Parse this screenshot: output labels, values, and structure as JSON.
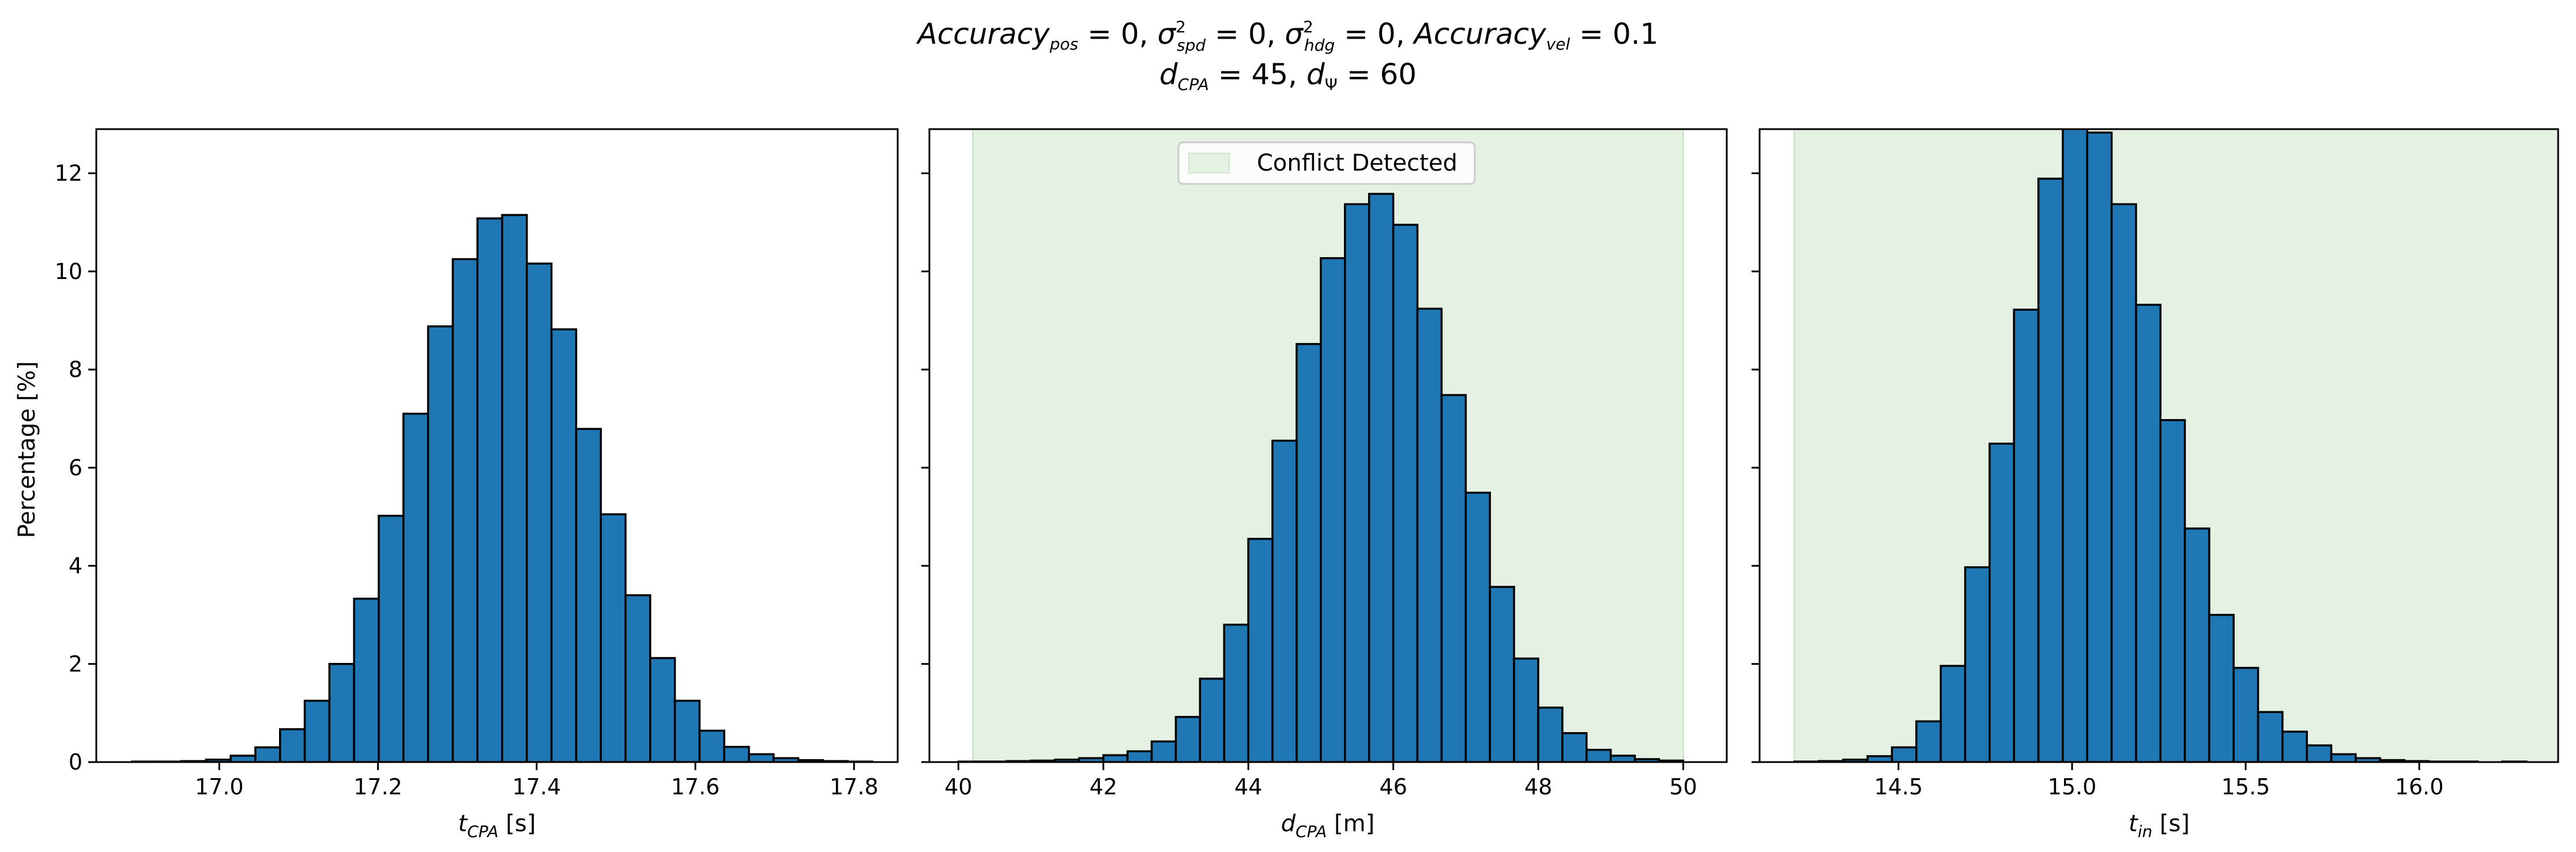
{
  "chart_data": {
    "type": "bar",
    "title": {
      "line1": "Accuracy_pos = 0, σ²_spd = 0, σ²_hdg = 0, Accuracy_vel = 0.1",
      "line2": "d_CPA = 45, d_Ψ = 60"
    },
    "ylabel": "Percentage [%]",
    "ylim": [
      0,
      12.9
    ],
    "yticks": [
      0,
      2,
      4,
      6,
      8,
      10,
      12
    ],
    "legend": {
      "label": "Conflict Detected",
      "placement": "top-center",
      "panel": 1
    },
    "colors": {
      "bar": "#1f77b4",
      "bar_edge": "#000000",
      "shade": "#e5f1e3",
      "shade_edge": "#cfe5cc"
    },
    "panels": [
      {
        "xlabel": "t_CPA [s]",
        "xlim": [
          16.845,
          17.855
        ],
        "xticks": [
          "17.0",
          "17.2",
          "17.4",
          "17.6",
          "17.8"
        ],
        "bin_start": 16.89,
        "bin_width": 0.0311,
        "values": [
          0.01,
          0.01,
          0.02,
          0.05,
          0.13,
          0.3,
          0.67,
          1.25,
          2.0,
          3.33,
          5.02,
          7.1,
          8.88,
          10.25,
          11.08,
          11.15,
          10.16,
          8.82,
          6.79,
          5.05,
          3.4,
          2.12,
          1.25,
          0.64,
          0.31,
          0.16,
          0.08,
          0.04,
          0.02,
          0.01,
          0.0
        ]
      },
      {
        "xlabel": "d_CPA [m]",
        "xlim": [
          39.6,
          50.6
        ],
        "xticks": [
          "40",
          "42",
          "44",
          "46",
          "48",
          "50"
        ],
        "shade": [
          40.2,
          50.0
        ],
        "bin_start": 40.0,
        "bin_width": 0.3333,
        "values": [
          0.01,
          0.01,
          0.02,
          0.03,
          0.05,
          0.08,
          0.14,
          0.22,
          0.42,
          0.92,
          1.7,
          2.8,
          4.55,
          6.55,
          8.52,
          10.27,
          11.37,
          11.58,
          10.95,
          9.24,
          7.48,
          5.49,
          3.57,
          2.11,
          1.11,
          0.59,
          0.25,
          0.13,
          0.06,
          0.03
        ]
      },
      {
        "xlabel": "t_in [s]",
        "xlim": [
          14.1,
          16.4
        ],
        "xticks": [
          "14.5",
          "15.0",
          "15.5",
          "16.0"
        ],
        "shade": [
          14.2,
          16.4
        ],
        "bin_start": 14.2,
        "bin_width": 0.0703,
        "values": [
          0.01,
          0.02,
          0.05,
          0.12,
          0.3,
          0.83,
          1.96,
          3.97,
          6.49,
          9.22,
          11.89,
          12.95,
          12.83,
          11.37,
          9.32,
          6.97,
          4.76,
          3.0,
          1.92,
          1.02,
          0.62,
          0.34,
          0.16,
          0.08,
          0.04,
          0.02,
          0.01,
          0.01,
          0.0,
          0.01
        ]
      }
    ]
  }
}
